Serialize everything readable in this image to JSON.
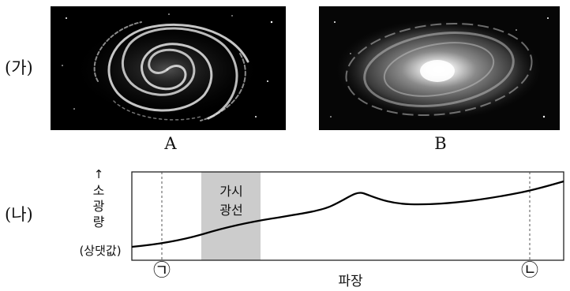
{
  "panel_ga": {
    "label": "(가)"
  },
  "panel_na": {
    "label": "(나)"
  },
  "galaxy_a": {
    "caption": "A"
  },
  "galaxy_b": {
    "caption": "B"
  },
  "graph": {
    "y_arrow": "↑",
    "y_label_lines": [
      "소",
      "광",
      "량"
    ],
    "y_unit": "(상댓값)",
    "visible_band_lines": [
      "가시",
      "광선"
    ],
    "x_label": "파장",
    "marker_1": "㉠",
    "marker_2": "㉡"
  }
}
